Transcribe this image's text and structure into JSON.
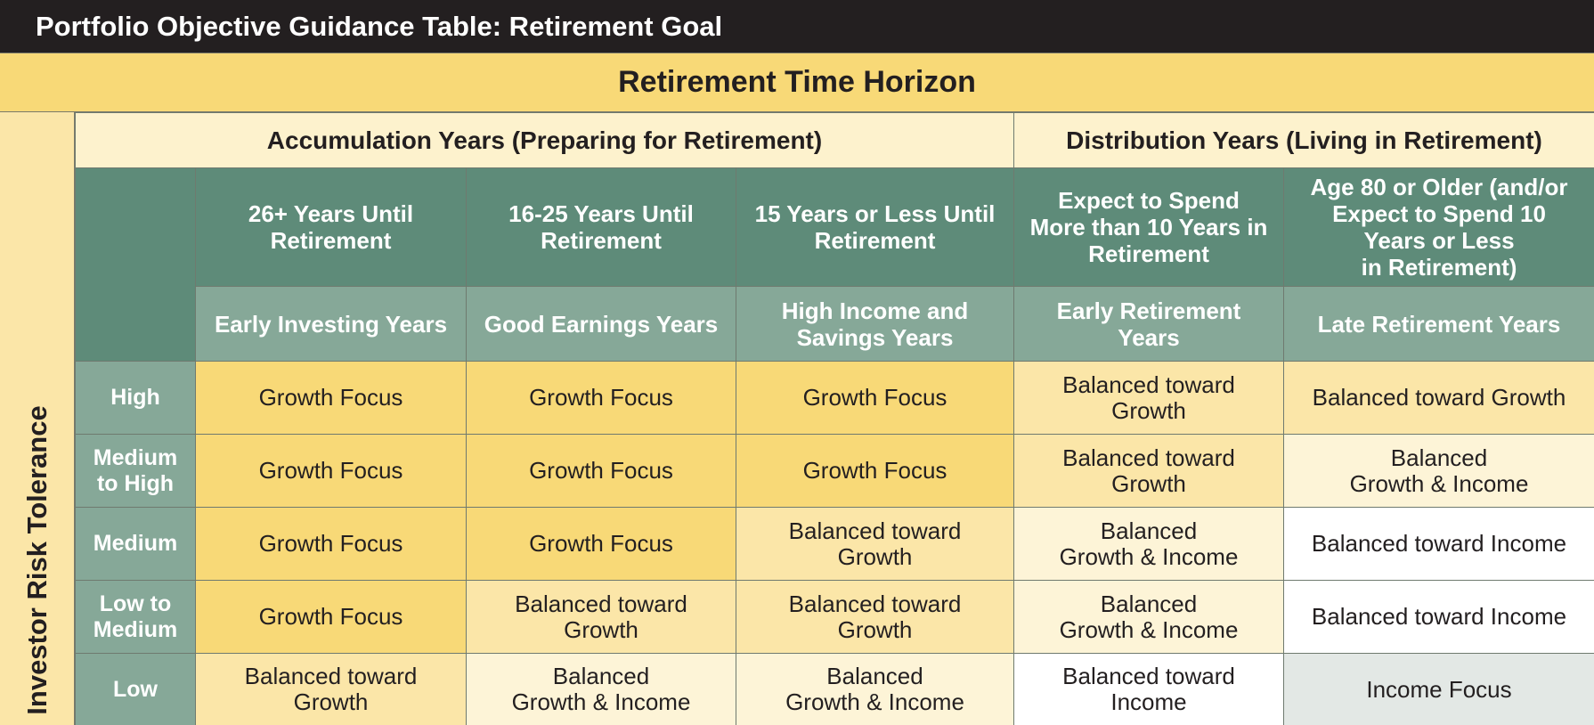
{
  "title": "Portfolio Objective Guidance Table: Retirement Goal",
  "horizon_label": "Retirement Time Horizon",
  "risk_axis_label": "Investor Risk Tolerance",
  "phases": [
    "Accumulation Years (Preparing for Retirement)",
    "Distribution Years (Living in Retirement)"
  ],
  "columns": [
    {
      "header_lines": [
        "26+ Years Until",
        "Retirement"
      ],
      "stage_lines": [
        "Early Investing Years"
      ]
    },
    {
      "header_lines": [
        "16-25 Years Until",
        "Retirement"
      ],
      "stage_lines": [
        "Good Earnings Years"
      ]
    },
    {
      "header_lines": [
        "15 Years or Less Until",
        "Retirement"
      ],
      "stage_lines": [
        "High Income and",
        "Savings Years"
      ]
    },
    {
      "header_lines": [
        "Expect to Spend",
        "More than 10 Years in",
        "Retirement"
      ],
      "stage_lines": [
        "Early Retirement",
        "Years"
      ]
    },
    {
      "header_lines": [
        "Age 80 or Older (and/or",
        "Expect to Spend 10",
        "Years or Less",
        "in Retirement)"
      ],
      "stage_lines": [
        "Late Retirement Years"
      ]
    }
  ],
  "risk_levels": [
    {
      "label_lines": [
        "High"
      ]
    },
    {
      "label_lines": [
        "Medium",
        "to High"
      ]
    },
    {
      "label_lines": [
        "Medium"
      ]
    },
    {
      "label_lines": [
        "Low to",
        "Medium"
      ]
    },
    {
      "label_lines": [
        "Low"
      ]
    }
  ],
  "cells": [
    [
      {
        "lines": [
          "Growth Focus"
        ],
        "level": "growth"
      },
      {
        "lines": [
          "Growth Focus"
        ],
        "level": "growth"
      },
      {
        "lines": [
          "Growth Focus"
        ],
        "level": "growth"
      },
      {
        "lines": [
          "Balanced toward",
          "Growth"
        ],
        "level": "balgrowth"
      },
      {
        "lines": [
          "Balanced toward Growth"
        ],
        "level": "balgrowth"
      }
    ],
    [
      {
        "lines": [
          "Growth Focus"
        ],
        "level": "growth"
      },
      {
        "lines": [
          "Growth Focus"
        ],
        "level": "growth"
      },
      {
        "lines": [
          "Growth Focus"
        ],
        "level": "growth"
      },
      {
        "lines": [
          "Balanced toward",
          "Growth"
        ],
        "level": "balgrowth"
      },
      {
        "lines": [
          "Balanced",
          "Growth & Income"
        ],
        "level": "balanced"
      }
    ],
    [
      {
        "lines": [
          "Growth Focus"
        ],
        "level": "growth"
      },
      {
        "lines": [
          "Growth Focus"
        ],
        "level": "growth"
      },
      {
        "lines": [
          "Balanced toward",
          "Growth"
        ],
        "level": "balgrowth"
      },
      {
        "lines": [
          "Balanced",
          "Growth & Income"
        ],
        "level": "balanced"
      },
      {
        "lines": [
          "Balanced toward Income"
        ],
        "level": "balincome"
      }
    ],
    [
      {
        "lines": [
          "Growth Focus"
        ],
        "level": "growth"
      },
      {
        "lines": [
          "Balanced toward",
          "Growth"
        ],
        "level": "balgrowth"
      },
      {
        "lines": [
          "Balanced toward",
          "Growth"
        ],
        "level": "balgrowth"
      },
      {
        "lines": [
          "Balanced",
          "Growth & Income"
        ],
        "level": "balanced"
      },
      {
        "lines": [
          "Balanced toward Income"
        ],
        "level": "balincome"
      }
    ],
    [
      {
        "lines": [
          "Balanced toward",
          "Growth"
        ],
        "level": "balgrowth"
      },
      {
        "lines": [
          "Balanced",
          "Growth & Income"
        ],
        "level": "balanced"
      },
      {
        "lines": [
          "Balanced",
          "Growth & Income"
        ],
        "level": "balanced"
      },
      {
        "lines": [
          "Balanced toward",
          "Income"
        ],
        "level": "balincome"
      },
      {
        "lines": [
          "Income Focus"
        ],
        "level": "income"
      }
    ]
  ],
  "colors": {
    "title_bar": "#231f20",
    "growth": "#f8d977",
    "balgrowth": "#fbe6a8",
    "balanced": "#fdf4d7",
    "balincome": "#ffffff",
    "income": "#e3e8e5",
    "header_dark": "#5e8b79",
    "header_light": "#86a898"
  }
}
